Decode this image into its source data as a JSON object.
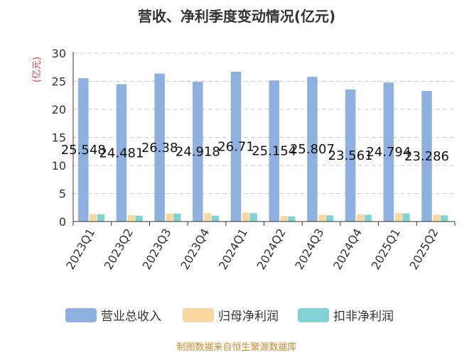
{
  "chart_data": {
    "type": "bar",
    "title": "营收、净利季度变动情况(亿元)",
    "ylabel": "(亿元)",
    "ylim": [
      0,
      30
    ],
    "yticks": [
      0,
      5,
      10,
      15,
      20,
      25,
      30
    ],
    "grid": true,
    "legend_position": "bottom",
    "categories": [
      "2023Q1",
      "2023Q2",
      "2023Q3",
      "2023Q4",
      "2024Q1",
      "2024Q2",
      "2024Q3",
      "2024Q4",
      "2025Q1",
      "2025Q2"
    ],
    "series": [
      {
        "name": "营业总收入",
        "color": "#8eb0df",
        "values": [
          25.548,
          24.481,
          26.38,
          24.918,
          26.71,
          25.154,
          25.807,
          23.561,
          24.794,
          23.286
        ],
        "labels": [
          "25.548",
          "24.481",
          "26.38",
          "24.918",
          "26.71",
          "25.154",
          "25.807",
          "23.561",
          "24.794",
          "23.286"
        ]
      },
      {
        "name": "归母净利润",
        "color": "#f9d8a0",
        "values": [
          1.35,
          1.15,
          1.45,
          1.5,
          1.6,
          1.0,
          1.2,
          1.3,
          1.5,
          1.2
        ]
      },
      {
        "name": "扣非净利润",
        "color": "#7fd3d3",
        "values": [
          1.3,
          1.05,
          1.4,
          1.05,
          1.5,
          0.9,
          1.1,
          1.2,
          1.45,
          1.1
        ]
      }
    ]
  },
  "source": "制图数据来自恒生聚源数据库"
}
